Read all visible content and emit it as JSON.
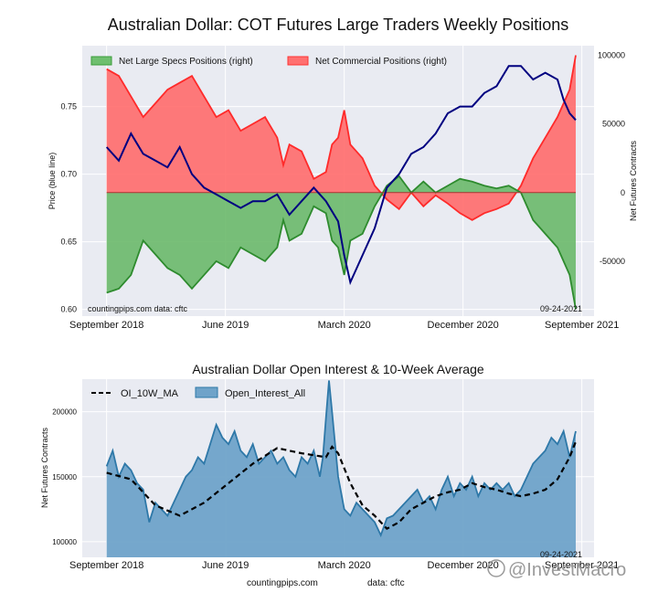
{
  "chart_data": [
    {
      "type": "area",
      "title": "Australian Dollar: COT Futures Large Traders Weekly Positions",
      "ylabel_left": "Price (blue line)",
      "ylabel_right": "Net Futures Contracts",
      "ylim_left": [
        0.595,
        0.795
      ],
      "ylim_right": [
        -90000,
        107000
      ],
      "left_ticks": [
        "0.60",
        "0.65",
        "0.70",
        "0.75"
      ],
      "left_tick_values": [
        0.6,
        0.65,
        0.7,
        0.75
      ],
      "right_ticks": [
        "-50000",
        "0",
        "50000",
        "100000"
      ],
      "right_tick_values": [
        -50000,
        0,
        50000,
        100000
      ],
      "x_ticks": [
        "September 2018",
        "June 2019",
        "March 2020",
        "December 2020",
        "September 2021"
      ],
      "x_tick_values": [
        0,
        39,
        78,
        117,
        156
      ],
      "x_range": [
        -8,
        160
      ],
      "watermark_left": "countingpips.com   data: cftc",
      "date_label": "09-24-2021",
      "grid": true,
      "legend_position": "top-left",
      "x_weeks": [
        0,
        4,
        8,
        12,
        16,
        20,
        24,
        28,
        32,
        36,
        40,
        44,
        48,
        52,
        56,
        58,
        60,
        64,
        68,
        72,
        74,
        76,
        78,
        80,
        84,
        88,
        92,
        96,
        100,
        104,
        108,
        112,
        116,
        120,
        124,
        128,
        132,
        136,
        140,
        144,
        148,
        152,
        154
      ],
      "net_specs": [
        -73000,
        -70000,
        -60000,
        -35000,
        -45000,
        -55000,
        -60000,
        -70000,
        -60000,
        -50000,
        -55000,
        -40000,
        -45000,
        -50000,
        -40000,
        -20000,
        -35000,
        -30000,
        -10000,
        -15000,
        -35000,
        -40000,
        -60000,
        -35000,
        -30000,
        -10000,
        5000,
        12000,
        0,
        8000,
        0,
        5000,
        10000,
        8000,
        5000,
        3000,
        5000,
        0,
        -20000,
        -30000,
        -40000,
        -60000,
        -85000
      ],
      "net_commercial": [
        90000,
        85000,
        70000,
        55000,
        65000,
        75000,
        80000,
        85000,
        70000,
        55000,
        60000,
        45000,
        50000,
        55000,
        40000,
        20000,
        35000,
        30000,
        10000,
        15000,
        35000,
        40000,
        60000,
        35000,
        25000,
        5000,
        -5000,
        -12000,
        0,
        -10000,
        -2000,
        -8000,
        -15000,
        -20000,
        -15000,
        -12000,
        -8000,
        5000,
        25000,
        40000,
        55000,
        75000,
        100000
      ],
      "price_weeks": [
        0,
        4,
        8,
        12,
        16,
        20,
        24,
        28,
        32,
        36,
        40,
        44,
        48,
        52,
        56,
        60,
        64,
        68,
        72,
        76,
        78,
        80,
        84,
        88,
        92,
        96,
        100,
        104,
        108,
        112,
        116,
        120,
        124,
        128,
        132,
        136,
        140,
        144,
        148,
        150,
        152,
        154
      ],
      "price": [
        0.72,
        0.71,
        0.73,
        0.715,
        0.71,
        0.705,
        0.72,
        0.7,
        0.69,
        0.685,
        0.68,
        0.675,
        0.68,
        0.68,
        0.685,
        0.67,
        0.68,
        0.69,
        0.68,
        0.665,
        0.64,
        0.62,
        0.64,
        0.66,
        0.69,
        0.7,
        0.715,
        0.72,
        0.73,
        0.745,
        0.75,
        0.75,
        0.76,
        0.765,
        0.78,
        0.78,
        0.77,
        0.775,
        0.77,
        0.755,
        0.745,
        0.74
      ],
      "series": [
        {
          "name": "Net Large Specs Positions (right)",
          "color": "#3a9e3a"
        },
        {
          "name": "Net Commercial Positions (right)",
          "color": "#ff3333"
        },
        {
          "name": "price",
          "color": "#000080"
        }
      ]
    },
    {
      "type": "area",
      "title": "Australian Dollar Open Interest & 10-Week Average",
      "ylabel": "Net Futures Contracts",
      "ylim": [
        88000,
        225000
      ],
      "y_ticks": [
        "100000",
        "150000",
        "200000"
      ],
      "y_tick_values": [
        100000,
        150000,
        200000
      ],
      "x_ticks": [
        "September 2018",
        "June 2019",
        "March 2020",
        "December 2020",
        "September 2021"
      ],
      "x_tick_values": [
        0,
        39,
        78,
        117,
        156
      ],
      "x_range": [
        -8,
        160
      ],
      "date_label": "09-24-2021",
      "grid": true,
      "legend_position": "top-left",
      "x_weeks": [
        0,
        2,
        4,
        6,
        8,
        10,
        12,
        14,
        16,
        18,
        20,
        22,
        24,
        26,
        28,
        30,
        32,
        34,
        36,
        38,
        40,
        42,
        44,
        46,
        48,
        50,
        52,
        54,
        56,
        58,
        60,
        62,
        64,
        66,
        68,
        70,
        71,
        72,
        73,
        74,
        76,
        78,
        80,
        82,
        84,
        86,
        88,
        90,
        92,
        94,
        96,
        98,
        100,
        102,
        104,
        106,
        108,
        110,
        112,
        114,
        116,
        118,
        120,
        122,
        124,
        126,
        128,
        130,
        132,
        134,
        136,
        138,
        140,
        142,
        144,
        146,
        148,
        150,
        152,
        154
      ],
      "open_interest": [
        158000,
        170000,
        150000,
        160000,
        155000,
        145000,
        140000,
        115000,
        130000,
        125000,
        120000,
        130000,
        140000,
        150000,
        155000,
        165000,
        160000,
        175000,
        190000,
        180000,
        175000,
        185000,
        170000,
        165000,
        175000,
        160000,
        165000,
        170000,
        160000,
        165000,
        155000,
        150000,
        165000,
        160000,
        170000,
        150000,
        165000,
        195000,
        224000,
        200000,
        150000,
        125000,
        120000,
        130000,
        125000,
        120000,
        115000,
        105000,
        118000,
        120000,
        125000,
        130000,
        135000,
        140000,
        130000,
        135000,
        125000,
        140000,
        150000,
        135000,
        145000,
        140000,
        150000,
        135000,
        145000,
        140000,
        145000,
        140000,
        145000,
        135000,
        140000,
        150000,
        160000,
        165000,
        170000,
        180000,
        175000,
        185000,
        165000,
        185000
      ],
      "ma_weeks": [
        0,
        8,
        16,
        24,
        32,
        40,
        48,
        56,
        64,
        72,
        74,
        76,
        80,
        84,
        88,
        92,
        96,
        100,
        104,
        108,
        112,
        116,
        120,
        124,
        128,
        132,
        136,
        140,
        144,
        148,
        152,
        154
      ],
      "ma": [
        153000,
        148000,
        128000,
        120000,
        130000,
        145000,
        160000,
        172000,
        168000,
        165000,
        173000,
        168000,
        145000,
        128000,
        120000,
        110000,
        115000,
        125000,
        130000,
        135000,
        138000,
        140000,
        145000,
        142000,
        140000,
        137000,
        135000,
        137000,
        140000,
        148000,
        165000,
        177000
      ],
      "series": [
        {
          "name": "OI_10W_MA",
          "color": "#000000"
        },
        {
          "name": "Open_Interest_All",
          "color": "#4f8fba"
        }
      ]
    }
  ],
  "footer": {
    "source_site": "countingpips.com",
    "source_data": "data: cftc",
    "watermark": "@InvestMacro"
  }
}
